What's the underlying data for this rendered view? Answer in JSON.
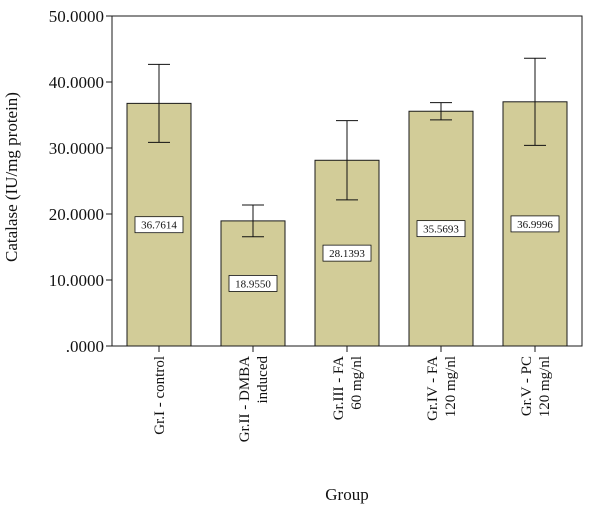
{
  "chart_data": {
    "type": "bar",
    "xlabel": "Group",
    "ylabel": "Catalase (IU/mg protein)",
    "ylim": [
      0,
      50
    ],
    "yticks": [
      {
        "value": 0,
        "label": ".0000"
      },
      {
        "value": 10,
        "label": "10.0000"
      },
      {
        "value": 20,
        "label": "20.0000"
      },
      {
        "value": 30,
        "label": "30.0000"
      },
      {
        "value": 40,
        "label": "40.0000"
      },
      {
        "value": 50,
        "label": "50.0000"
      }
    ],
    "categories": [
      [
        "Gr.I - control"
      ],
      [
        "Gr.II - DMBA",
        "induced"
      ],
      [
        "Gr.III - FA",
        "60 mg/nl"
      ],
      [
        "Gr.IV - FA",
        "120 mg/nl"
      ],
      [
        "Gr.V - PC",
        "120 mg/nl"
      ]
    ],
    "values": [
      36.7614,
      18.955,
      28.1393,
      35.5693,
      36.9996
    ],
    "data_labels": [
      "36.7614",
      "18.9550",
      "28.1393",
      "35.5693",
      "36.9996"
    ],
    "errors": [
      5.9,
      2.4,
      6.0,
      1.3,
      6.6
    ],
    "grid": false,
    "legend": "none",
    "colors": {
      "bar": "#d2cc98",
      "bar_edge": "#1a1a1a",
      "axis": "#1a1a1a"
    }
  }
}
